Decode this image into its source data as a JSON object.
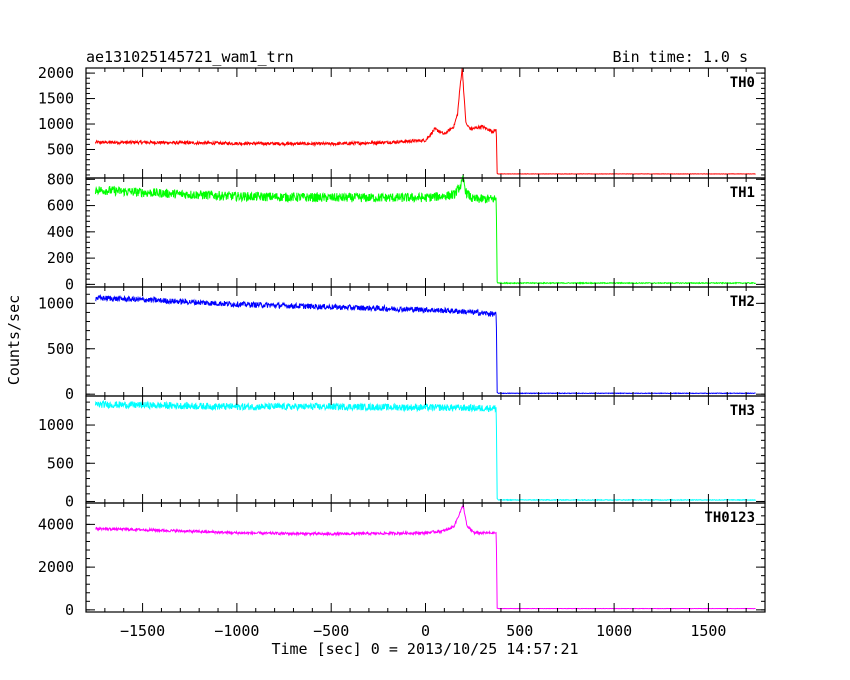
{
  "header": {
    "left_title": "ae131025145721_wam1_trn",
    "right_title": "Bin time: 1.0 s"
  },
  "chart_data": {
    "type": "line",
    "ylabel": "Counts/sec",
    "xlabel": "Time [sec] 0 = 2013/10/25 14:57:21",
    "xlim": [
      -1800,
      1800
    ],
    "x_ticks": [
      -1500,
      -1000,
      -500,
      0,
      500,
      1000,
      1500
    ],
    "x_tick_labels": [
      "−1500",
      "−1000",
      "−500",
      "0",
      "500",
      "1000",
      "1500"
    ],
    "panels": [
      {
        "name": "TH0",
        "color": "#ff0000",
        "ylim": [
          -60,
          2100
        ],
        "y_ticks": [
          500,
          1000,
          1500,
          2000
        ],
        "y_tick_labels": [
          "500",
          "1000",
          "1500",
          "2000"
        ],
        "x": [
          -1750,
          -1500,
          -1000,
          -500,
          -200,
          0,
          50,
          100,
          150,
          170,
          185,
          195,
          205,
          215,
          240,
          300,
          360,
          375,
          380,
          385,
          1750
        ],
        "y": [
          640,
          640,
          620,
          610,
          640,
          680,
          900,
          800,
          950,
          1200,
          1800,
          2100,
          1500,
          1000,
          900,
          950,
          850,
          900,
          30,
          20,
          20
        ],
        "noise": 30
      },
      {
        "name": "TH1",
        "color": "#00ff00",
        "ylim": [
          -20,
          810
        ],
        "y_ticks": [
          0,
          200,
          400,
          600,
          800
        ],
        "y_tick_labels": [
          "0",
          "200",
          "400",
          "600",
          "800"
        ],
        "x": [
          -1750,
          -1500,
          -1000,
          -500,
          0,
          150,
          190,
          200,
          215,
          250,
          375,
          380,
          385,
          1750
        ],
        "y": [
          720,
          700,
          670,
          660,
          660,
          680,
          760,
          800,
          700,
          650,
          650,
          20,
          10,
          10
        ],
        "noise": 35
      },
      {
        "name": "TH2",
        "color": "#0000ff",
        "ylim": [
          -20,
          1180
        ],
        "y_ticks": [
          0,
          500,
          1000
        ],
        "y_tick_labels": [
          "0",
          "500",
          "1000"
        ],
        "x": [
          -1750,
          -1500,
          -1000,
          -500,
          0,
          200,
          375,
          380,
          385,
          1750
        ],
        "y": [
          1060,
          1040,
          990,
          960,
          930,
          910,
          880,
          20,
          10,
          10
        ],
        "noise": 30
      },
      {
        "name": "TH3",
        "color": "#00ffff",
        "ylim": [
          -20,
          1380
        ],
        "y_ticks": [
          0,
          500,
          1000
        ],
        "y_tick_labels": [
          "0",
          "500",
          "1000"
        ],
        "x": [
          -1750,
          -1500,
          -1000,
          -500,
          0,
          375,
          380,
          385,
          1750
        ],
        "y": [
          1270,
          1260,
          1240,
          1240,
          1230,
          1220,
          40,
          20,
          20
        ],
        "noise": 45
      },
      {
        "name": "TH0123",
        "color": "#ff00ff",
        "ylim": [
          -100,
          5000
        ],
        "y_ticks": [
          0,
          2000,
          4000
        ],
        "y_tick_labels": [
          "0",
          "2000",
          "4000"
        ],
        "x": [
          -1750,
          -1500,
          -1000,
          -500,
          0,
          100,
          150,
          180,
          200,
          220,
          260,
          375,
          380,
          385,
          1750
        ],
        "y": [
          3800,
          3750,
          3600,
          3550,
          3600,
          3700,
          3900,
          4500,
          4900,
          3900,
          3600,
          3600,
          80,
          60,
          60
        ],
        "noise": 60
      }
    ]
  }
}
